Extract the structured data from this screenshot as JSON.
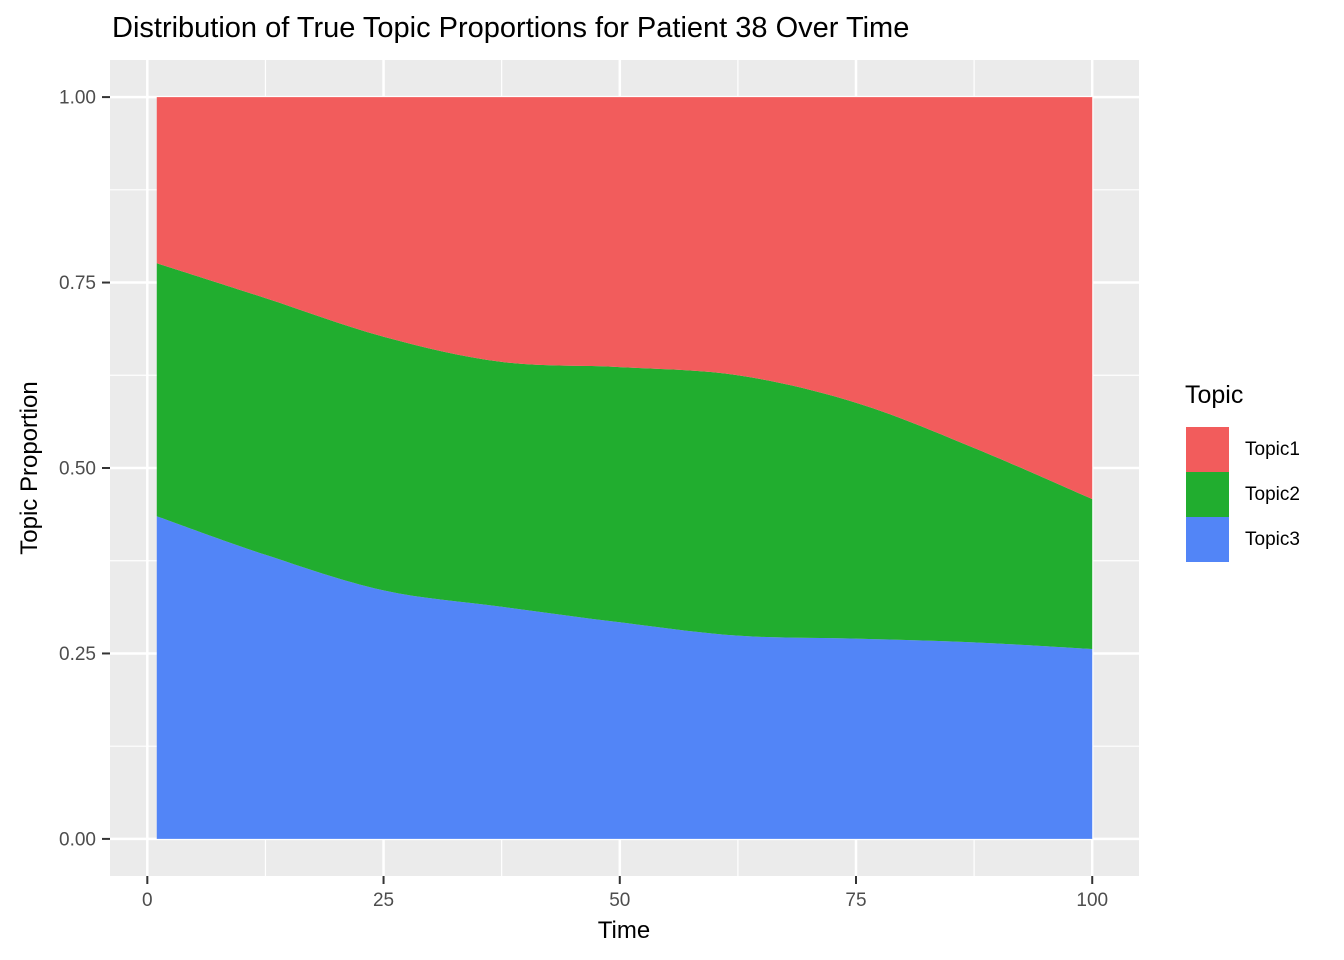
{
  "page": {
    "background": "#FFFFFF"
  },
  "chart_data": {
    "type": "area",
    "stacked": true,
    "title": "Distribution of True Topic Proportions for Patient 38 Over Time",
    "xlabel": "Time",
    "ylabel": "Topic Proportion",
    "x": [
      1,
      12.5,
      25,
      37.5,
      50,
      62.5,
      75,
      87.5,
      100
    ],
    "series": [
      {
        "name": "Topic1",
        "color": "#F25C5C",
        "values": [
          0.224,
          0.271,
          0.323,
          0.357,
          0.364,
          0.375,
          0.412,
          0.473,
          0.542
        ]
      },
      {
        "name": "Topic2",
        "color": "#21AD2F",
        "values": [
          0.341,
          0.346,
          0.342,
          0.33,
          0.344,
          0.351,
          0.318,
          0.262,
          0.202
        ]
      },
      {
        "name": "Topic3",
        "color": "#5285F7",
        "values": [
          0.435,
          0.383,
          0.335,
          0.313,
          0.292,
          0.274,
          0.27,
          0.265,
          0.256
        ]
      }
    ],
    "stack_order_bottom_to_top": [
      "Topic3",
      "Topic2",
      "Topic1"
    ],
    "xlim": [
      -3.95,
      104.95
    ],
    "ylim": [
      -0.05,
      1.05
    ],
    "x_ticks": {
      "values": [
        0,
        25,
        50,
        75,
        100
      ],
      "labels": [
        "0",
        "25",
        "50",
        "75",
        "100"
      ]
    },
    "y_ticks": {
      "values": [
        0,
        0.25,
        0.5,
        0.75,
        1
      ],
      "labels": [
        "0.00",
        "0.25",
        "0.50",
        "0.75",
        "1.00"
      ]
    },
    "x_minor_ticks": [
      12.5,
      37.5,
      62.5,
      87.5
    ],
    "y_minor_ticks": [
      0.125,
      0.375,
      0.625,
      0.875
    ],
    "grid": true,
    "legend_position": "right",
    "panel_background": "#EBEBEB",
    "grid_color": "#FFFFFF",
    "tick_color": "#333333",
    "tick_label_color": "#4D4D4D",
    "legend": {
      "title": "Topic",
      "entries": [
        {
          "label": "Topic1",
          "color": "#F25C5C"
        },
        {
          "label": "Topic2",
          "color": "#21AD2F"
        },
        {
          "label": "Topic3",
          "color": "#5285F7"
        }
      ]
    }
  }
}
